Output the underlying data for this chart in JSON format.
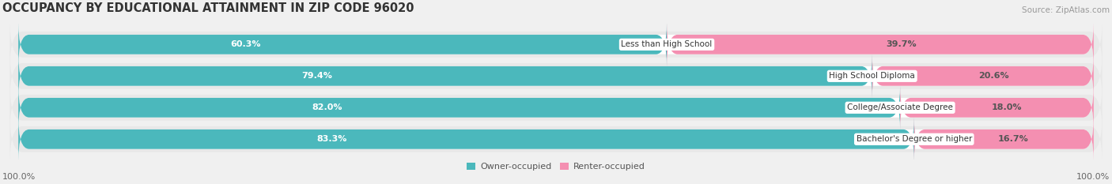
{
  "title": "OCCUPANCY BY EDUCATIONAL ATTAINMENT IN ZIP CODE 96020",
  "source": "Source: ZipAtlas.com",
  "categories": [
    "Less than High School",
    "High School Diploma",
    "College/Associate Degree",
    "Bachelor's Degree or higher"
  ],
  "owner_values": [
    60.3,
    79.4,
    82.0,
    83.3
  ],
  "renter_values": [
    39.7,
    20.6,
    18.0,
    16.7
  ],
  "owner_color": "#4bb8bc",
  "renter_color": "#f48fb1",
  "background_color": "#f0f0f0",
  "bar_background": "#ffffff",
  "row_background": "#e8e8e8",
  "title_fontsize": 10.5,
  "label_fontsize": 8.0,
  "tick_fontsize": 8.0,
  "source_fontsize": 7.5,
  "legend_fontsize": 8.0,
  "bar_height": 0.62,
  "left_axis_label": "100.0%",
  "right_axis_label": "100.0%",
  "renter_label_color_threshold": 30
}
